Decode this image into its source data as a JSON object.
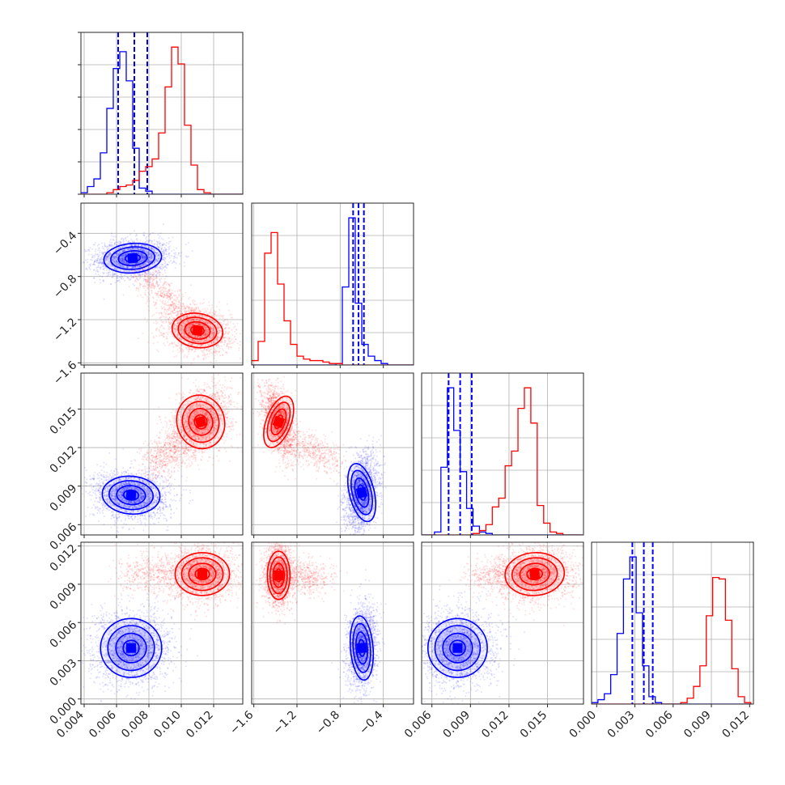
{
  "colors": {
    "blue": "#0000ff",
    "red": "#ff0000"
  },
  "chart_data": {
    "type": "corner",
    "title": "",
    "grid": true,
    "parameters": [
      {
        "range": [
          0.0038,
          0.0138
        ],
        "ticks": [
          "0.004",
          "0.006",
          "0.008",
          "0.010",
          "0.012"
        ],
        "tick_values": [
          0.004,
          0.006,
          0.008,
          0.01,
          0.012
        ]
      },
      {
        "range": [
          -1.62,
          -0.12
        ],
        "ticks": [
          "−1.6",
          "−1.2",
          "−0.8",
          "−0.4"
        ],
        "tick_values": [
          -1.6,
          -1.2,
          -0.8,
          -0.4
        ]
      },
      {
        "range": [
          0.0052,
          0.0178
        ],
        "ticks": [
          "0.006",
          "0.009",
          "0.012",
          "0.015"
        ],
        "tick_values": [
          0.006,
          0.009,
          0.012,
          0.015
        ]
      },
      {
        "range": [
          -0.0004,
          0.0123
        ],
        "ticks": [
          "0.000",
          "0.003",
          "0.006",
          "0.009",
          "0.012"
        ],
        "tick_values": [
          0.0,
          0.003,
          0.006,
          0.009,
          0.012
        ]
      }
    ],
    "series": [
      {
        "color": "blue",
        "quantiles": [
          [
            0.0061,
            0.0071,
            0.0079
          ],
          [
            -0.68,
            -0.63,
            -0.58
          ],
          [
            0.0073,
            0.0082,
            0.0091
          ],
          [
            0.0028,
            0.0037,
            0.0044
          ]
        ],
        "histograms": [
          {
            "start": 0.0038,
            "width": 0.0004,
            "counts": [
              0.01,
              0.05,
              0.1,
              0.27,
              0.56,
              0.82,
              0.93,
              0.74,
              0.3,
              0.04,
              0.02,
              0,
              0,
              0,
              0,
              0,
              0,
              0,
              0,
              0,
              0,
              0,
              0,
              0,
              0
            ]
          },
          {
            "start": -1.62,
            "width": 0.06,
            "counts": [
              0,
              0,
              0,
              0,
              0,
              0,
              0,
              0,
              0,
              0,
              0,
              0,
              0,
              0.01,
              0.53,
              1.0,
              0.42,
              0.14,
              0.06,
              0.03,
              0.01,
              0,
              0,
              0,
              0
            ]
          },
          {
            "start": 0.0052,
            "width": 0.0005,
            "counts": [
              0,
              0,
              0.02,
              0.46,
              1.0,
              0.71,
              0.43,
              0.18,
              0.06,
              0.02,
              0.01,
              0,
              0,
              0,
              0,
              0,
              0,
              0,
              0,
              0,
              0,
              0,
              0,
              0,
              0
            ]
          },
          {
            "start": -0.0004,
            "width": 0.0005,
            "counts": [
              0.01,
              0.03,
              0.07,
              0.2,
              0.48,
              0.85,
              1.0,
              0.62,
              0.26,
              0.05,
              0.01,
              0,
              0,
              0,
              0,
              0,
              0,
              0,
              0,
              0,
              0,
              0,
              0,
              0,
              0
            ]
          }
        ],
        "pairs": [
          {
            "x": 0,
            "y": 1,
            "mean": [
              0.007,
              -0.63
            ],
            "sd": [
              0.00085,
              0.065
            ],
            "rho": 0.1,
            "n": 2000
          },
          {
            "x": 0,
            "y": 2,
            "mean": [
              0.0069,
              0.0083
            ],
            "sd": [
              0.00085,
              0.0007
            ],
            "rho": -0.1,
            "n": 2000
          },
          {
            "x": 0,
            "y": 3,
            "mean": [
              0.0069,
              0.004
            ],
            "sd": [
              0.0009,
              0.0011
            ],
            "rho": 0.0,
            "n": 2000
          },
          {
            "x": 1,
            "y": 2,
            "mean": [
              -0.6,
              0.0085
            ],
            "sd": [
              0.055,
              0.0011
            ],
            "rho": 0.3,
            "n": 2000
          },
          {
            "x": 1,
            "y": 3,
            "mean": [
              -0.6,
              0.004
            ],
            "sd": [
              0.05,
              0.0012
            ],
            "rho": 0.1,
            "n": 2000
          },
          {
            "x": 2,
            "y": 3,
            "mean": [
              0.008,
              0.004
            ],
            "sd": [
              0.0011,
              0.0011
            ],
            "rho": 0.0,
            "n": 2000
          }
        ]
      },
      {
        "color": "red",
        "quantiles": null,
        "histograms": [
          {
            "start": 0.0038,
            "width": 0.0004,
            "counts": [
              0,
              0,
              0,
              0,
              0.01,
              0.03,
              0.05,
              0.06,
              0.09,
              0.15,
              0.18,
              0.23,
              0.4,
              0.7,
              0.96,
              0.85,
              0.45,
              0.19,
              0.03,
              0.01,
              0,
              0,
              0,
              0,
              0
            ]
          },
          {
            "start": -1.62,
            "width": 0.06,
            "counts": [
              0.03,
              0.16,
              0.76,
              0.9,
              0.55,
              0.3,
              0.14,
              0.06,
              0.04,
              0.03,
              0.03,
              0.02,
              0.01,
              0.01,
              0,
              0,
              0,
              0,
              0,
              0,
              0,
              0,
              0,
              0,
              0
            ]
          },
          {
            "start": 0.0052,
            "width": 0.0005,
            "counts": [
              0,
              0,
              0,
              0,
              0,
              0,
              0,
              0,
              0.01,
              0.03,
              0.07,
              0.19,
              0.25,
              0.47,
              0.57,
              0.86,
              1.0,
              0.76,
              0.2,
              0.08,
              0.02,
              0.01,
              0,
              0,
              0
            ]
          },
          {
            "start": -0.0004,
            "width": 0.0005,
            "counts": [
              0,
              0,
              0,
              0,
              0,
              0,
              0,
              0,
              0,
              0,
              0,
              0,
              0,
              0,
              0.01,
              0.04,
              0.12,
              0.26,
              0.6,
              0.86,
              0.85,
              0.57,
              0.24,
              0.05,
              0.01
            ]
          }
        ],
        "pairs": [
          {
            "x": 0,
            "y": 1,
            "mean": [
              0.011,
              -1.3
            ],
            "sd": [
              0.00075,
              0.075
            ],
            "rho": -0.2,
            "n": 1800
          },
          {
            "x": 0,
            "y": 2,
            "mean": [
              0.0112,
              0.014
            ],
            "sd": [
              0.0007,
              0.001
            ],
            "rho": 0.35,
            "n": 1800
          },
          {
            "x": 0,
            "y": 3,
            "mean": [
              0.0113,
              0.0098
            ],
            "sd": [
              0.0008,
              0.0008
            ],
            "rho": 0.0,
            "n": 1800
          },
          {
            "x": 1,
            "y": 2,
            "mean": [
              -1.37,
              0.014
            ],
            "sd": [
              0.055,
              0.001
            ],
            "rho": -0.45,
            "n": 1800
          },
          {
            "x": 1,
            "y": 3,
            "mean": [
              -1.37,
              0.0097
            ],
            "sd": [
              0.05,
              0.0009
            ],
            "rho": 0.0,
            "n": 1800
          },
          {
            "x": 2,
            "y": 3,
            "mean": [
              0.014,
              0.0098
            ],
            "sd": [
              0.0011,
              0.0008
            ],
            "rho": 0.1,
            "n": 1800
          }
        ],
        "bridges": [
          {
            "x": 0,
            "y": 1,
            "from": [
              0.0075,
              -0.75
            ],
            "to": [
              0.0105,
              -1.2
            ],
            "spread": [
              0.0005,
              0.06
            ],
            "n": 500
          },
          {
            "x": 0,
            "y": 2,
            "from": [
              0.008,
              0.0105
            ],
            "to": [
              0.01,
              0.0125
            ],
            "spread": [
              0.0005,
              0.0008
            ],
            "n": 500
          },
          {
            "x": 0,
            "y": 3,
            "from": [
              0.0065,
              0.0098
            ],
            "to": [
              0.0095,
              0.0098
            ],
            "spread": [
              0.0006,
              0.0008
            ],
            "n": 450
          },
          {
            "x": 1,
            "y": 2,
            "from": [
              -1.25,
              0.0125
            ],
            "to": [
              -0.85,
              0.011
            ],
            "spread": [
              0.07,
              0.0007
            ],
            "n": 450
          },
          {
            "x": 1,
            "y": 3,
            "from": [
              -1.25,
              0.0097
            ],
            "to": [
              -0.95,
              0.0095
            ],
            "spread": [
              0.08,
              0.0007
            ],
            "n": 450
          },
          {
            "x": 2,
            "y": 3,
            "from": [
              0.0095,
              0.0098
            ],
            "to": [
              0.0125,
              0.0098
            ],
            "spread": [
              0.0008,
              0.0007
            ],
            "n": 400
          }
        ]
      }
    ]
  }
}
